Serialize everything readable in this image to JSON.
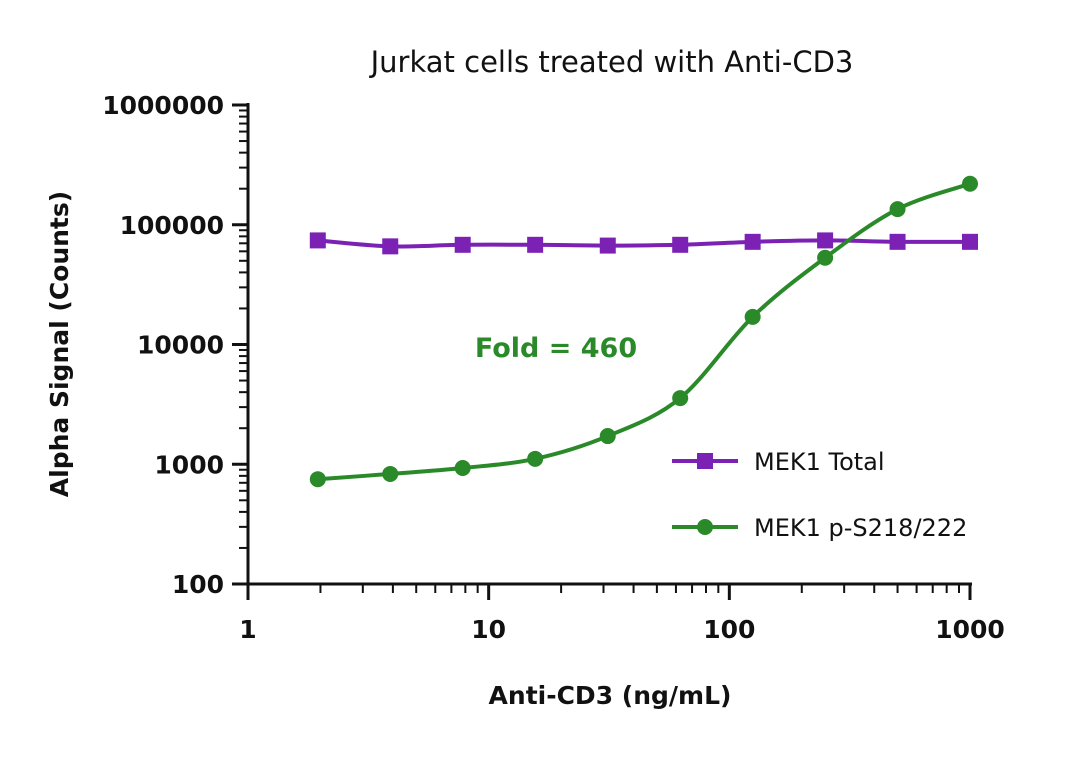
{
  "chart_data": {
    "type": "line",
    "title": "Jurkat cells treated with Anti-CD3",
    "xlabel": "Anti-CD3 (ng/mL)",
    "ylabel": "Alpha Signal (Counts)",
    "xscale": "log",
    "yscale": "log",
    "xlim": [
      1,
      1000
    ],
    "ylim": [
      100,
      1000000
    ],
    "xticks": [
      "1",
      "10",
      "100",
      "1000"
    ],
    "yticks": [
      "100",
      "1000",
      "10000",
      "100000",
      "1000000"
    ],
    "grid": false,
    "legend_position": "bottom-right",
    "x": [
      1.95,
      3.9,
      7.8,
      15.6,
      31.25,
      62.5,
      125,
      250,
      500,
      1000
    ],
    "series": [
      {
        "name": "MEK1 Total",
        "color": "#7b22b5",
        "marker": "square",
        "values": [
          74000,
          66000,
          68000,
          68000,
          67000,
          68000,
          72000,
          74000,
          72000,
          72000
        ]
      },
      {
        "name": "MEK1 p-S218/222",
        "color": "#2a8a2a",
        "marker": "circle",
        "values": [
          750,
          830,
          930,
          1110,
          1720,
          3570,
          17000,
          53000,
          135000,
          220000
        ]
      }
    ],
    "annotations": [
      {
        "text": "Fold = 460",
        "color": "#2a8a2a"
      }
    ]
  }
}
